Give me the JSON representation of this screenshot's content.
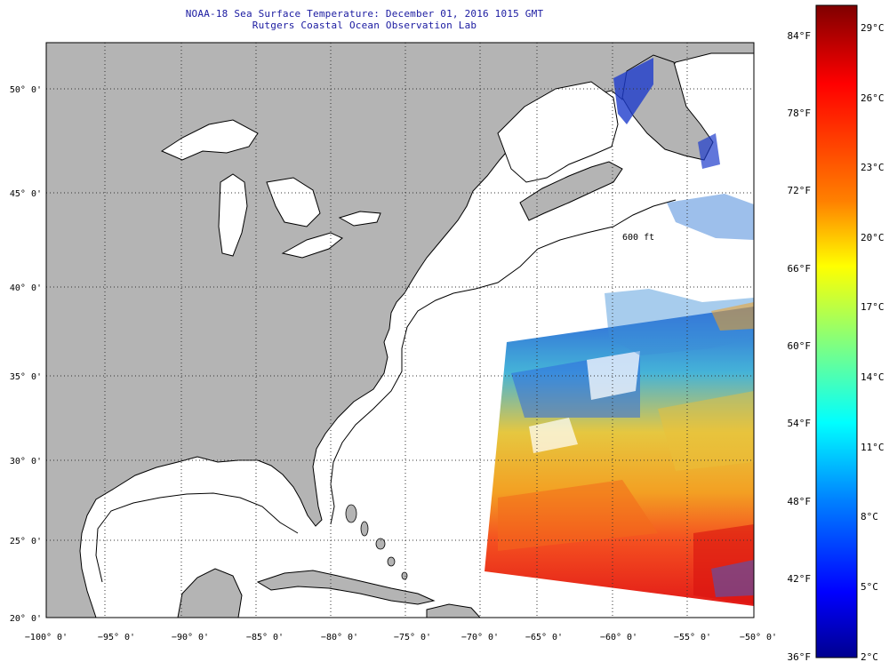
{
  "title": "NOAA-18 Sea Surface Temperature:  December 01, 2016 1015 GMT",
  "subtitle": "Rutgers Coastal Ocean Observation Lab",
  "lat_labels": [
    "50° 0'",
    "45° 0'",
    "40° 0'",
    "35° 0'",
    "30° 0'",
    "25° 0'",
    "20° 0'"
  ],
  "lon_labels": [
    "−100° 0'",
    "−95° 0'",
    "−90° 0'",
    "−85° 0'",
    "−80° 0'",
    "−75° 0'",
    "−70° 0'",
    "−65° 0'",
    "−60° 0'",
    "−55° 0'",
    "−50° 0'"
  ],
  "depth_contour_label": "600 ft",
  "colorbar": {
    "f_labels": [
      "84°F",
      "78°F",
      "72°F",
      "66°F",
      "60°F",
      "54°F",
      "48°F",
      "42°F",
      "36°F"
    ],
    "c_labels": [
      "29°C",
      "26°C",
      "23°C",
      "20°C",
      "17°C",
      "14°C",
      "11°C",
      "8°C",
      "5°C",
      "2°C"
    ],
    "color_stops": [
      "#7f0000",
      "#ff0000",
      "#ff8000",
      "#ffff00",
      "#80ff80",
      "#00ffff",
      "#0080ff",
      "#0000ff",
      "#00008f"
    ]
  },
  "colors": {
    "land": "#b4b4b4",
    "ocean": "#ffffff",
    "graticule": "#333333",
    "title": "#1a1aa0"
  }
}
